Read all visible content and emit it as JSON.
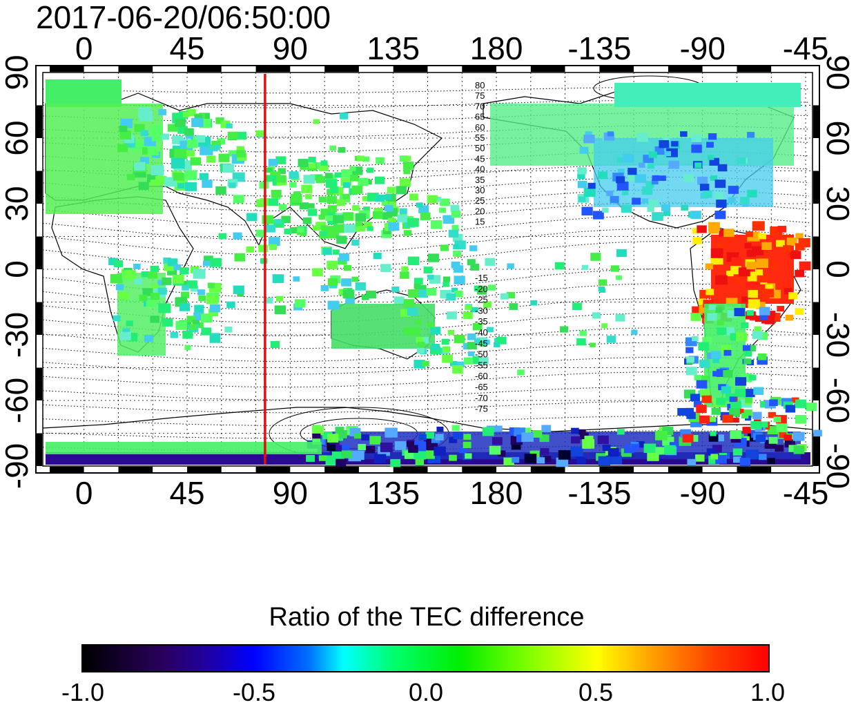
{
  "timestamp": "2017-06-20/06:50:00",
  "map": {
    "x_ticks_top": [
      "0",
      "45",
      "90",
      "135",
      "180",
      "-135",
      "-90",
      "-45"
    ],
    "x_ticks_bottom": [
      "0",
      "45",
      "90",
      "135",
      "180",
      "-135",
      "-90",
      "-45"
    ],
    "y_ticks_left": [
      "90",
      "60",
      "30",
      "0",
      "-30",
      "-60",
      "-90"
    ],
    "y_ticks_right": [
      "90",
      "60",
      "30",
      "0",
      "-30",
      "-60",
      "-90"
    ],
    "lon_range": [
      -18,
      318
    ],
    "lat_range": [
      -90,
      90
    ],
    "marker_longitude": 79,
    "marker_color": "#e01010",
    "contour_labels_north": [
      "80",
      "75",
      "70",
      "65",
      "60",
      "55",
      "50",
      "45",
      "40",
      "35",
      "30",
      "25",
      "20",
      "15"
    ],
    "contour_labels_south": [
      "-15",
      "-20",
      "-25",
      "-30",
      "-35",
      "-40",
      "-45",
      "-50",
      "-55",
      "-60",
      "-65",
      "-70",
      "-75"
    ]
  },
  "colorbar": {
    "title": "Ratio of the TEC difference",
    "ticks": [
      "-1.0",
      "-0.5",
      "0.0",
      "0.5",
      "1.0"
    ],
    "range": [
      -1.0,
      1.0
    ],
    "colors": [
      "#000000",
      "#2000a0",
      "#0000ff",
      "#00ffff",
      "#00ee00",
      "#ffff00",
      "#ff0000"
    ]
  }
}
